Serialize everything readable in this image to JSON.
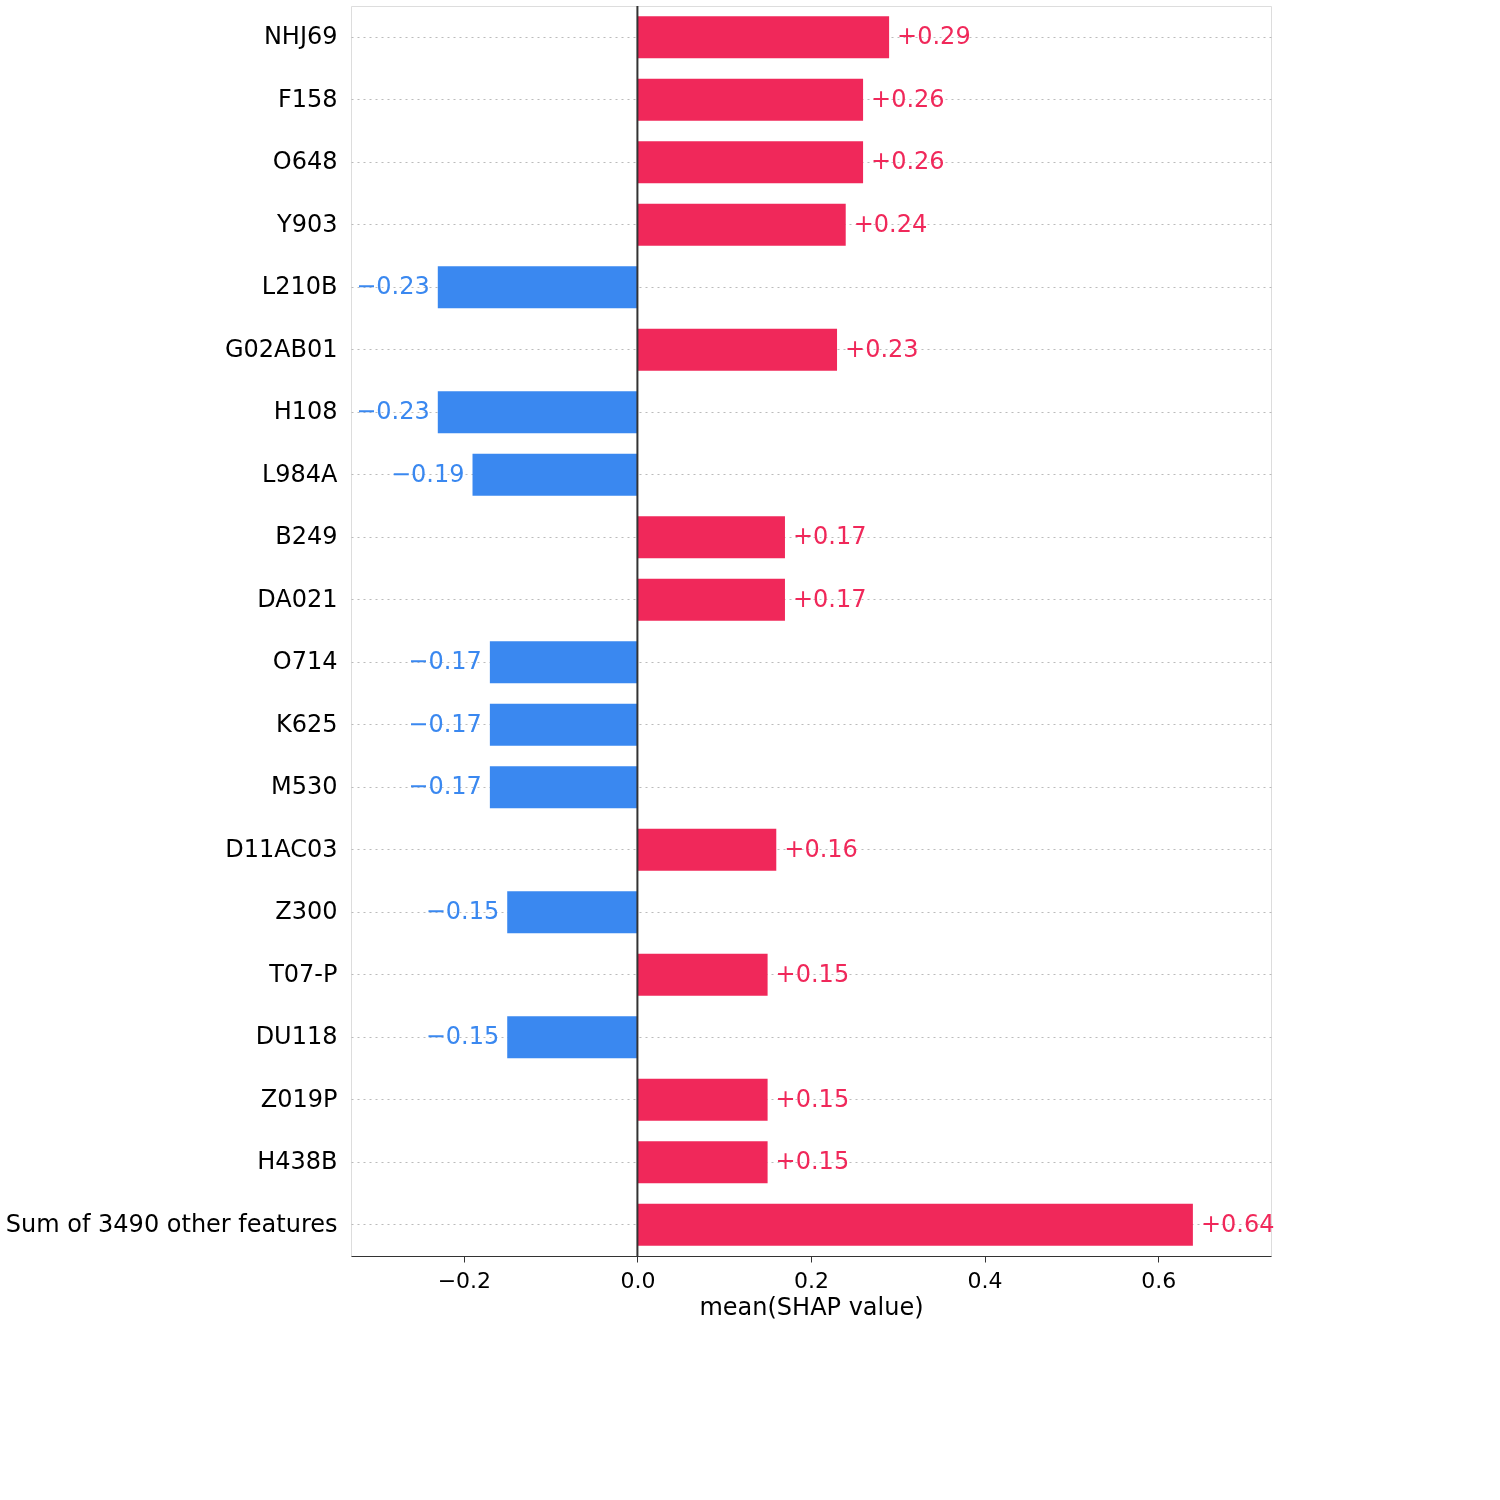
{
  "chart_data": {
    "type": "bar",
    "orientation": "horizontal",
    "xlabel": "mean(SHAP value)",
    "categories": [
      "NHJ69",
      "F158",
      "O648",
      "Y903",
      "L210B",
      "G02AB01",
      "H108",
      "L984A",
      "B249",
      "DA021",
      "O714",
      "K625",
      "M530",
      "D11AC03",
      "Z300",
      "T07-P",
      "DU118",
      "Z019P",
      "H438B",
      "Sum of 3490 other features"
    ],
    "values": [
      0.29,
      0.26,
      0.26,
      0.24,
      -0.23,
      0.23,
      -0.23,
      -0.19,
      0.17,
      0.17,
      -0.17,
      -0.17,
      -0.17,
      0.16,
      -0.15,
      0.15,
      -0.15,
      0.15,
      0.15,
      0.64
    ],
    "value_labels": [
      "+0.29",
      "+0.26",
      "+0.26",
      "+0.24",
      "−0.23",
      "+0.23",
      "−0.23",
      "−0.19",
      "+0.17",
      "+0.17",
      "−0.17",
      "−0.17",
      "−0.17",
      "+0.16",
      "−0.15",
      "+0.15",
      "−0.15",
      "+0.15",
      "+0.15",
      "+0.64"
    ],
    "colors": [
      "#f0285a",
      "#f0285a",
      "#f0285a",
      "#f0285a",
      "#3a88f0",
      "#f0285a",
      "#3a88f0",
      "#3a88f0",
      "#f0285a",
      "#f0285a",
      "#3a88f0",
      "#3a88f0",
      "#3a88f0",
      "#f0285a",
      "#3a88f0",
      "#f0285a",
      "#3a88f0",
      "#f0285a",
      "#f0285a",
      "#f0285a"
    ],
    "xlim": [
      -0.33,
      0.73
    ],
    "xticks": [
      -0.2,
      {
        "value": 0,
        "label": "0.0"
      },
      0.2,
      0.4,
      0.6
    ],
    "grid": "y",
    "ref_lines": [
      {
        "axis": "x",
        "value": 0,
        "color": "#333333",
        "line_style": "solid"
      }
    ]
  }
}
